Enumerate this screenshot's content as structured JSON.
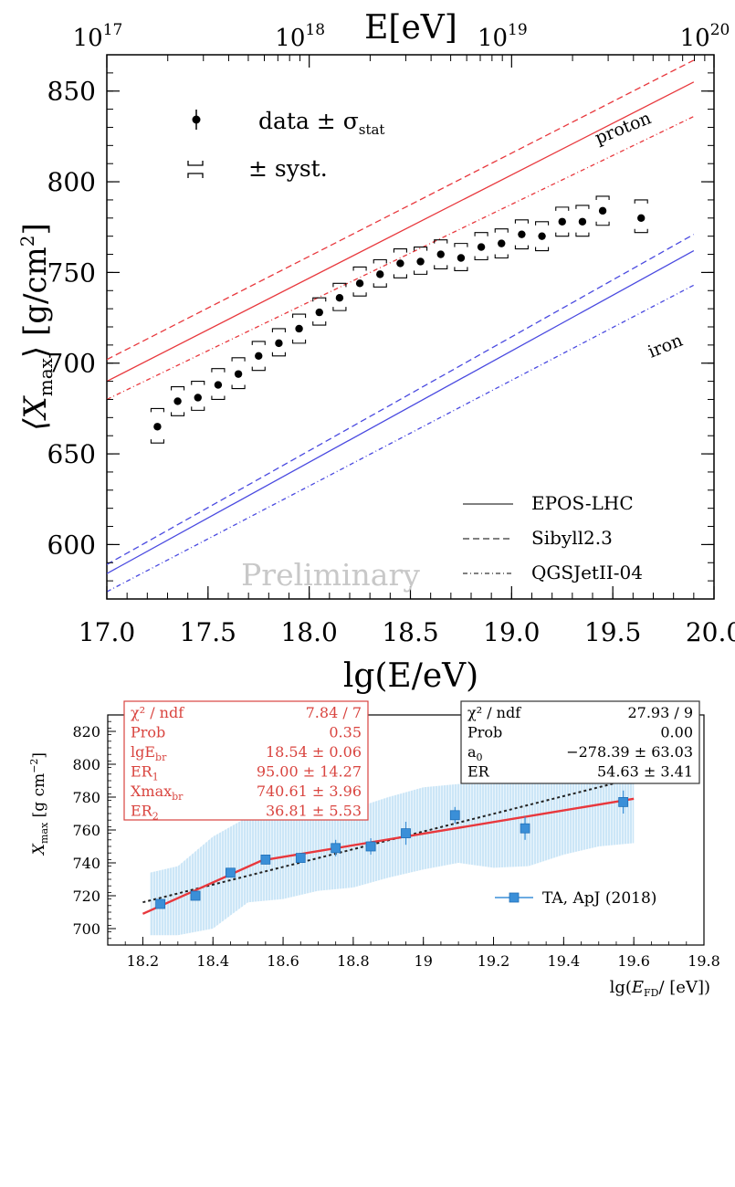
{
  "chart_data": [
    {
      "type": "scatter",
      "top_axis": {
        "label": "E[eV]",
        "ticks": [
          "10",
          "10",
          "10",
          "10"
        ],
        "exponents": [
          "17",
          "18",
          "19",
          "20"
        ]
      },
      "xlabel": "lg(E/eV)",
      "ylabel": {
        "main": "⟨X",
        "sub": "max",
        "tail": "⟩ [g/cm",
        "sup": "2",
        "close": "]"
      },
      "xlim": [
        17.0,
        20.0
      ],
      "ylim": [
        570,
        870
      ],
      "x_ticks": [
        "17.0",
        "17.5",
        "18.0",
        "18.5",
        "19.0",
        "19.5",
        "20.0"
      ],
      "y_ticks": [
        "600",
        "650",
        "700",
        "750",
        "800",
        "850"
      ],
      "x_tick_values": [
        17.0,
        17.5,
        18.0,
        18.5,
        19.0,
        19.5,
        20.0
      ],
      "y_tick_values": [
        600,
        650,
        700,
        750,
        800,
        850
      ],
      "legend_top": {
        "data_label": "data ± σ",
        "data_sub": "stat",
        "syst_label": "± syst."
      },
      "legend_bottom": [
        "EPOS-LHC",
        "Sibyll2.3",
        "QGSJetII-04"
      ],
      "annotations": {
        "proton": "proton",
        "iron": "iron",
        "watermark": "Preliminary"
      },
      "colors": {
        "proton": "#e8383d",
        "iron": "#4a4ae0",
        "data": "#000000",
        "watermark": "#c8c8c8"
      },
      "lines": [
        {
          "name": "proton EPOS-LHC",
          "color": "#e8383d",
          "style": "solid",
          "x": [
            17.0,
            19.9
          ],
          "y": [
            690,
            855
          ]
        },
        {
          "name": "proton Sibyll2.3",
          "color": "#e8383d",
          "style": "dashed",
          "x": [
            17.0,
            19.9
          ],
          "y": [
            702,
            867
          ]
        },
        {
          "name": "proton QGSJetII-04",
          "color": "#e8383d",
          "style": "dashdot",
          "x": [
            17.0,
            19.9
          ],
          "y": [
            680,
            836
          ]
        },
        {
          "name": "iron EPOS-LHC",
          "color": "#4a4ae0",
          "style": "solid",
          "x": [
            17.0,
            19.9
          ],
          "y": [
            584,
            762
          ]
        },
        {
          "name": "iron Sibyll2.3",
          "color": "#4a4ae0",
          "style": "dashed",
          "x": [
            17.0,
            19.9
          ],
          "y": [
            589,
            771
          ]
        },
        {
          "name": "iron QGSJetII-04",
          "color": "#4a4ae0",
          "style": "dashdot",
          "x": [
            17.0,
            19.9
          ],
          "y": [
            574,
            743
          ]
        }
      ],
      "points": [
        {
          "x": 17.25,
          "y": 665,
          "sys_lo": 656,
          "sys_hi": 675
        },
        {
          "x": 17.35,
          "y": 679,
          "sys_lo": 671,
          "sys_hi": 687
        },
        {
          "x": 17.45,
          "y": 681,
          "sys_lo": 674,
          "sys_hi": 690
        },
        {
          "x": 17.55,
          "y": 688,
          "sys_lo": 680,
          "sys_hi": 697
        },
        {
          "x": 17.65,
          "y": 694,
          "sys_lo": 686,
          "sys_hi": 703
        },
        {
          "x": 17.75,
          "y": 704,
          "sys_lo": 696,
          "sys_hi": 712
        },
        {
          "x": 17.85,
          "y": 711,
          "sys_lo": 704,
          "sys_hi": 719
        },
        {
          "x": 17.95,
          "y": 719,
          "sys_lo": 711,
          "sys_hi": 727
        },
        {
          "x": 18.05,
          "y": 728,
          "sys_lo": 721,
          "sys_hi": 736
        },
        {
          "x": 18.15,
          "y": 736,
          "sys_lo": 729,
          "sys_hi": 744
        },
        {
          "x": 18.25,
          "y": 744,
          "sys_lo": 737,
          "sys_hi": 753
        },
        {
          "x": 18.35,
          "y": 749,
          "sys_lo": 742,
          "sys_hi": 757
        },
        {
          "x": 18.45,
          "y": 755,
          "sys_lo": 747,
          "sys_hi": 763
        },
        {
          "x": 18.55,
          "y": 756,
          "sys_lo": 749,
          "sys_hi": 764
        },
        {
          "x": 18.65,
          "y": 760,
          "sys_lo": 752,
          "sys_hi": 768
        },
        {
          "x": 18.75,
          "y": 758,
          "sys_lo": 751,
          "sys_hi": 766
        },
        {
          "x": 18.85,
          "y": 764,
          "sys_lo": 757,
          "sys_hi": 772
        },
        {
          "x": 18.95,
          "y": 766,
          "sys_lo": 758,
          "sys_hi": 774
        },
        {
          "x": 19.05,
          "y": 771,
          "sys_lo": 763,
          "sys_hi": 779
        },
        {
          "x": 19.15,
          "y": 770,
          "sys_lo": 762,
          "sys_hi": 778
        },
        {
          "x": 19.25,
          "y": 778,
          "sys_lo": 770,
          "sys_hi": 786
        },
        {
          "x": 19.35,
          "y": 778,
          "sys_lo": 770,
          "sys_hi": 787
        },
        {
          "x": 19.45,
          "y": 784,
          "sys_lo": 776,
          "sys_hi": 792
        },
        {
          "x": 19.64,
          "y": 780,
          "sys_lo": 772,
          "sys_hi": 790
        }
      ]
    },
    {
      "type": "scatter",
      "xlabel": {
        "main": "lg(",
        "E": "E",
        "sub": "FD",
        "tail": "/ [eV])"
      },
      "ylabel": {
        "main": "X",
        "sub": "max",
        "tail": " [g cm",
        "sup": "−2",
        "close": "]"
      },
      "xlim": [
        18.1,
        19.8
      ],
      "ylim": [
        690,
        830
      ],
      "x_ticks": [
        "18.2",
        "18.4",
        "18.6",
        "18.8",
        "19",
        "19.2",
        "19.4",
        "19.6",
        "19.8"
      ],
      "x_tick_values": [
        18.2,
        18.4,
        18.6,
        18.8,
        19.0,
        19.2,
        19.4,
        19.6,
        19.8
      ],
      "y_ticks": [
        "700",
        "720",
        "740",
        "760",
        "780",
        "800",
        "820"
      ],
      "y_tick_values": [
        700,
        720,
        740,
        760,
        780,
        800,
        820
      ],
      "fit_box_red": {
        "rows": [
          {
            "label": "χ² / ndf",
            "value": "7.84 / 7"
          },
          {
            "label": "Prob",
            "value": "0.35"
          },
          {
            "label": "lgE",
            "label_sub": "br",
            "value": "18.54 ±  0.06"
          },
          {
            "label": "ER",
            "label_sub": "1",
            "value": "95.00 ± 14.27"
          },
          {
            "label": "Xmax",
            "label_sub": "br",
            "value": "740.61 ±  3.96"
          },
          {
            "label": "ER",
            "label_sub": "2",
            "value": "36.81 ±  5.53"
          }
        ]
      },
      "fit_box_black": {
        "rows": [
          {
            "label": "χ² / ndf",
            "value": "27.93 / 9"
          },
          {
            "label": "Prob",
            "value": "0.00"
          },
          {
            "label": "a",
            "label_sub": "0",
            "value": "−278.39 ± 63.03"
          },
          {
            "label": "ER",
            "label_sub": "",
            "value": "54.63 ±  3.41"
          }
        ]
      },
      "legend": "TA, ApJ (2018)",
      "colors": {
        "points": "#3a8fd8",
        "band": "#aed8f2",
        "broken_fit": "#e8383d",
        "linear_fit": "#222222",
        "red_text": "#d9443f"
      },
      "points": [
        {
          "x": 18.25,
          "y": 715,
          "err": 2
        },
        {
          "x": 18.35,
          "y": 720,
          "err": 2
        },
        {
          "x": 18.45,
          "y": 734,
          "err": 2
        },
        {
          "x": 18.55,
          "y": 742,
          "err": 3
        },
        {
          "x": 18.65,
          "y": 743,
          "err": 3
        },
        {
          "x": 18.75,
          "y": 749,
          "err": 5
        },
        {
          "x": 18.85,
          "y": 750,
          "err": 5
        },
        {
          "x": 18.95,
          "y": 758,
          "err": 7
        },
        {
          "x": 19.09,
          "y": 769,
          "err": 5
        },
        {
          "x": 19.29,
          "y": 761,
          "err": 7
        },
        {
          "x": 19.57,
          "y": 777,
          "err": 7
        }
      ],
      "band": [
        {
          "x": 18.22,
          "lo": 696,
          "hi": 734
        },
        {
          "x": 18.3,
          "lo": 696,
          "hi": 738
        },
        {
          "x": 18.4,
          "lo": 700,
          "hi": 756
        },
        {
          "x": 18.5,
          "lo": 716,
          "hi": 768
        },
        {
          "x": 18.6,
          "lo": 718,
          "hi": 769
        },
        {
          "x": 18.7,
          "lo": 723,
          "hi": 770
        },
        {
          "x": 18.8,
          "lo": 725,
          "hi": 773
        },
        {
          "x": 18.9,
          "lo": 731,
          "hi": 780
        },
        {
          "x": 19.0,
          "lo": 736,
          "hi": 786
        },
        {
          "x": 19.1,
          "lo": 740,
          "hi": 788
        },
        {
          "x": 19.2,
          "lo": 737,
          "hi": 788
        },
        {
          "x": 19.3,
          "lo": 738,
          "hi": 792
        },
        {
          "x": 19.4,
          "lo": 745,
          "hi": 797
        },
        {
          "x": 19.5,
          "lo": 750,
          "hi": 801
        },
        {
          "x": 19.6,
          "lo": 752,
          "hi": 803
        }
      ],
      "broken_fit": {
        "x": [
          18.2,
          18.54,
          19.6
        ],
        "y": [
          709,
          741.5,
          779
        ]
      },
      "linear_fit": {
        "x": [
          18.2,
          19.63
        ],
        "y": [
          716,
          793
        ]
      }
    }
  ]
}
